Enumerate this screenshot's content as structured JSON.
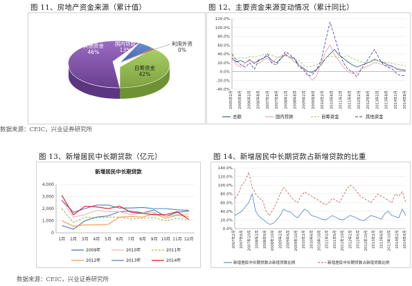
{
  "figures": {
    "fig11_title": "图 11、房地产资金来源（累计值）",
    "fig12_title": "图 12、主要资金来源变动情况（累计同比）",
    "fig13_title": "图 13、新增居民中长期贷款（亿元）",
    "fig14_title": "图 14、新增居民中长期贷款占新增贷款的比重",
    "source_top": "数据来源：CEIC，兴业证券研究所",
    "source_bottom": "数据来源：CEIC，兴业证券研究所"
  },
  "chart_data": [
    {
      "id": "fig11",
      "type": "pie",
      "slices": [
        {
          "label": "国内贷款",
          "value": 13,
          "display": "13%",
          "color": "#4a6fb5"
        },
        {
          "label": "利用外资",
          "value": 0.5,
          "display": "0%",
          "color": "#c0504d"
        },
        {
          "label": "自筹资金",
          "value": 42,
          "display": "42%",
          "color": "#8db54a"
        },
        {
          "label": "其他资金",
          "value": 46,
          "display": "46%",
          "color": "#7a4f9e"
        }
      ]
    },
    {
      "id": "fig12",
      "type": "line",
      "ylim": [
        -40,
        120
      ],
      "yticks": [
        "120.0%",
        "100.0%",
        "80.0%",
        "60.0%",
        "40.0%",
        "20.0%",
        "0.0%",
        "-20.0%",
        "-40.0%"
      ],
      "xticks": [
        "2005年2月",
        "2005年8月",
        "2006年2月",
        "2006年8月",
        "2007年2月",
        "2007年8月",
        "2008年2月",
        "2008年8月",
        "2009年2月",
        "2009年8月",
        "2010年2月",
        "2010年8月",
        "2011年2月",
        "2011年8月",
        "2012年2月",
        "2012年8月",
        "2013年2月",
        "2013年8月",
        "2014年2月",
        "2014年8月"
      ],
      "series": [
        {
          "name": "总额",
          "color": "#2a4f8f",
          "dash": "",
          "values": [
            30,
            22,
            25,
            20,
            27,
            18,
            26,
            30,
            35,
            25,
            20,
            30,
            38,
            33,
            30,
            15,
            8,
            0,
            -2,
            5,
            15,
            30,
            40,
            50,
            38,
            30,
            22,
            15,
            10,
            14,
            18,
            22,
            28,
            24,
            20,
            15,
            12,
            5,
            3,
            2
          ]
        },
        {
          "name": "国内贷款",
          "color": "#e49aa8",
          "dash": "",
          "values": [
            35,
            15,
            10,
            20,
            25,
            22,
            18,
            26,
            30,
            20,
            30,
            35,
            40,
            32,
            22,
            15,
            5,
            -5,
            -20,
            -10,
            20,
            45,
            60,
            38,
            25,
            10,
            0,
            -5,
            -3,
            5,
            10,
            15,
            20,
            18,
            15,
            12,
            10,
            8,
            5,
            4
          ]
        },
        {
          "name": "自筹资金",
          "color": "#9bbb59",
          "dash": "3,2",
          "values": [
            25,
            28,
            32,
            30,
            34,
            33,
            35,
            38,
            40,
            36,
            34,
            32,
            36,
            30,
            28,
            25,
            15,
            10,
            12,
            16,
            20,
            30,
            35,
            33,
            32,
            34,
            36,
            30,
            26,
            22,
            20,
            22,
            25,
            24,
            22,
            20,
            18,
            16,
            14,
            12
          ]
        },
        {
          "name": "其他资金",
          "color": "#3b3b8a",
          "dash": "4,2",
          "values": [
            40,
            25,
            15,
            10,
            20,
            5,
            25,
            30,
            40,
            18,
            15,
            30,
            45,
            38,
            30,
            10,
            5,
            -10,
            -8,
            5,
            25,
            70,
            112,
            80,
            45,
            20,
            5,
            0,
            -12,
            5,
            20,
            35,
            50,
            30,
            15,
            10,
            5,
            -5,
            -10,
            -8
          ]
        }
      ]
    },
    {
      "id": "fig13",
      "type": "line",
      "title": "新增居民中长期贷款",
      "categories": [
        "1月",
        "2月",
        "3月",
        "4月",
        "5月",
        "6月",
        "7月",
        "8月",
        "9月",
        "10月",
        "11月",
        "12月"
      ],
      "ylim": [
        0,
        4000
      ],
      "yticks": [
        "4,000",
        "3,000",
        "2,000",
        "1,000",
        "0"
      ],
      "series": [
        {
          "name": "2009年",
          "color": "#4a6fb5",
          "dash": "",
          "values": [
            600,
            300,
            1000,
            1300,
            1400,
            1750,
            1800,
            1650,
            1900,
            1350,
            1700,
            1800
          ]
        },
        {
          "name": "2010年",
          "color": "#e6b9b8",
          "dash": "",
          "values": [
            2700,
            1300,
            1500,
            1850,
            1750,
            1750,
            1500,
            1650,
            1700,
            1350,
            1500,
            1550
          ]
        },
        {
          "name": "2011年",
          "color": "#9bbb59",
          "dash": "3,2",
          "values": [
            2000,
            850,
            1300,
            1250,
            1300,
            1300,
            1150,
            1200,
            1250,
            1000,
            1200,
            1050
          ]
        },
        {
          "name": "2012年",
          "color": "#f79646",
          "dash": "",
          "values": [
            1000,
            550,
            650,
            650,
            700,
            1300,
            1350,
            1300,
            1600,
            1200,
            1450,
            1350
          ]
        },
        {
          "name": "2013年",
          "color": "#4f81bd",
          "dash": "",
          "values": [
            2700,
            1700,
            2000,
            2300,
            2300,
            2050,
            2050,
            2100,
            2000,
            2000,
            1900,
            1850
          ]
        },
        {
          "name": "2014年",
          "color": "#d7191c",
          "dash": "",
          "values": [
            3100,
            1500,
            2200,
            2150,
            2000,
            2200,
            1700,
            1600,
            1500,
            1500,
            1750,
            1100
          ]
        }
      ]
    },
    {
      "id": "fig14",
      "type": "line",
      "ylim": [
        0,
        140
      ],
      "yticks": [
        "140.0%",
        "120.0%",
        "100.0%",
        "80.0%",
        "60.0%",
        "40.0%",
        "20.0%",
        "0.0%"
      ],
      "xticks": [
        "2007年2月",
        "2007年6月",
        "2007年10月",
        "2008年2月",
        "2008年6月",
        "2008年10月",
        "2009年2月",
        "2009年6月",
        "2009年10月",
        "2010年2月",
        "2010年6月",
        "2010年10月",
        "2011年2月",
        "2011年6月",
        "2011年10月",
        "2012年2月",
        "2012年6月",
        "2012年10月",
        "2013年2月",
        "2013年6月",
        "2013年10月",
        "2014年2月",
        "2014年6月"
      ],
      "series": [
        {
          "name": "新增居民中长期贷款占新增贷款比例",
          "color": "#4f81bd",
          "dash": "",
          "values": [
            30,
            35,
            40,
            50,
            60,
            80,
            40,
            28,
            22,
            15,
            10,
            12,
            20,
            30,
            45,
            40,
            38,
            30,
            25,
            35,
            45,
            40,
            30,
            28,
            25,
            22,
            20,
            25,
            30,
            26,
            22,
            20,
            25,
            30,
            28,
            24,
            20,
            18,
            25,
            30,
            28,
            25,
            22,
            35,
            40,
            30,
            28,
            25,
            45,
            30
          ]
        },
        {
          "name": "新增居民中长期贷款占新增贷款比例",
          "color": "#c0504d",
          "dash": "3,2",
          "values": [
            70,
            80,
            100,
            110,
            130,
            95,
            80,
            70,
            65,
            40,
            30,
            45,
            60,
            80,
            95,
            85,
            75,
            65,
            60,
            75,
            85,
            80,
            75,
            70,
            65,
            60,
            55,
            60,
            70,
            65,
            60,
            75,
            90,
            100,
            95,
            85,
            75,
            70,
            65,
            60,
            70,
            80,
            75,
            70,
            65,
            60,
            80,
            75,
            85,
            60
          ]
        }
      ]
    }
  ]
}
